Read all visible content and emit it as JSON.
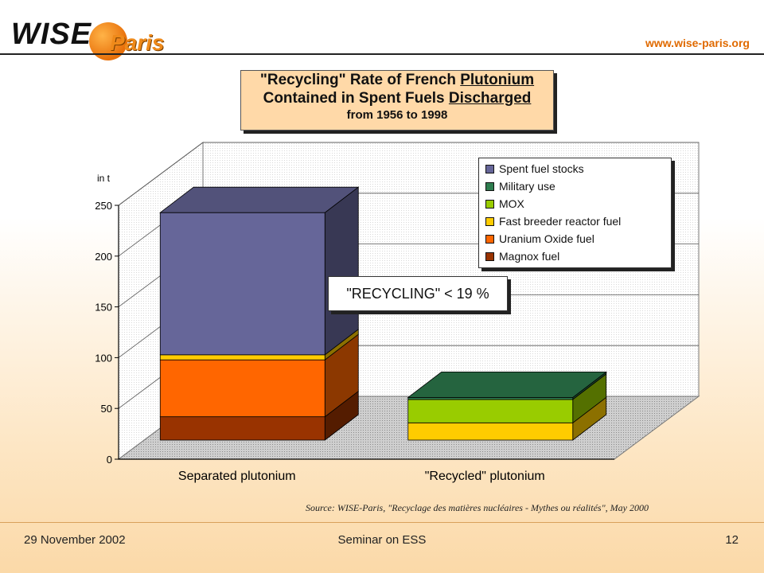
{
  "header": {
    "logo_primary": "WISE",
    "logo_secondary": "Paris",
    "url": "www.wise-paris.org"
  },
  "title": {
    "line1_prefix": "\"Recycling\" Rate of French ",
    "line1_underlined": "Plutonium",
    "line2_prefix": "Contained in Spent Fuels ",
    "line2_underlined": "Discharged",
    "line3": "from 1956 to 1998"
  },
  "chart_data": {
    "type": "bar",
    "stacked": true,
    "three_d": true,
    "unit_label": "in t",
    "categories": [
      "Separated plutonium",
      "\"Recycled\" plutonium"
    ],
    "ylim": [
      0,
      250
    ],
    "yticks": [
      0,
      50,
      100,
      150,
      200,
      250
    ],
    "grid": true,
    "legend_position": "top-right",
    "series": [
      {
        "name": "Magnox fuel",
        "color": "#993300",
        "values": [
          23,
          0
        ]
      },
      {
        "name": "Uranium Oxide fuel",
        "color": "#ff6600",
        "values": [
          56,
          0
        ]
      },
      {
        "name": "Fast breeder reactor fuel",
        "color": "#ffcc00",
        "values": [
          5,
          17
        ]
      },
      {
        "name": "MOX",
        "color": "#99cc00",
        "values": [
          0,
          23
        ]
      },
      {
        "name": "Military use",
        "color": "#2e7d4f",
        "values": [
          0,
          2
        ]
      },
      {
        "name": "Spent fuel stocks",
        "color": "#666699",
        "values": [
          140,
          0
        ]
      }
    ],
    "legend_order": [
      "Spent fuel stocks",
      "Military use",
      "MOX",
      "Fast breeder reactor fuel",
      "Uranium Oxide fuel",
      "Magnox fuel"
    ],
    "annotation": "\"RECYCLING\" < 19 %"
  },
  "source": "Source: WISE-Paris, \"Recyclage des matières nucléaires - Mythes ou réalités\", May 2000",
  "footer": {
    "date": "29 November 2002",
    "event": "Seminar on ESS",
    "page": "12"
  }
}
